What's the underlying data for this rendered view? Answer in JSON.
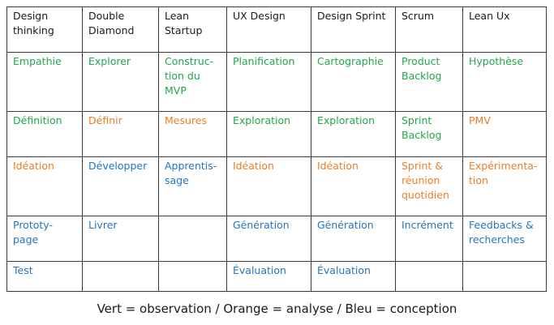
{
  "colors": {
    "green": "#21a84a",
    "orange": "#ee7d26",
    "blue": "#2276be",
    "border": "#3a3a3a",
    "text": "#1a1a1a"
  },
  "table": {
    "headers": [
      "Design\nthinking",
      "Double\nDiamond",
      "Lean\nStartup",
      "UX Design",
      "Design Sprint",
      "Scrum",
      "Lean Ux"
    ],
    "rows": [
      [
        {
          "text": "Empathie",
          "color": "green"
        },
        {
          "text": "Explorer",
          "color": "green"
        },
        {
          "text": "Construc-\ntion du\nMVP",
          "color": "green"
        },
        {
          "text": "Planification",
          "color": "green"
        },
        {
          "text": "Cartographie",
          "color": "green"
        },
        {
          "text": "Product\nBacklog",
          "color": "green"
        },
        {
          "text": "Hypothèse",
          "color": "green"
        }
      ],
      [
        {
          "text": "Définition",
          "color": "green"
        },
        {
          "text": "Définir",
          "color": "orange"
        },
        {
          "text": "Mesures",
          "color": "orange"
        },
        {
          "text": "Exploration",
          "color": "green"
        },
        {
          "text": "Exploration",
          "color": "green"
        },
        {
          "text": "Sprint\nBacklog",
          "color": "green"
        },
        {
          "text": "PMV",
          "color": "orange"
        }
      ],
      [
        {
          "text": "Idéation",
          "color": "orange"
        },
        {
          "text": "Développer",
          "color": "blue"
        },
        {
          "text": "Apprentis-\nsage",
          "color": "blue"
        },
        {
          "text": "Idéation",
          "color": "orange"
        },
        {
          "text": "Idéation",
          "color": "orange"
        },
        {
          "text": "Sprint &\nréunion\nquotidien",
          "color": "orange"
        },
        {
          "text": "Expérimenta-\ntion",
          "color": "orange"
        }
      ],
      [
        {
          "text": "Prototy-\npage",
          "color": "blue"
        },
        {
          "text": "Livrer",
          "color": "blue"
        },
        {
          "text": "",
          "color": "blue"
        },
        {
          "text": "Génération",
          "color": "blue"
        },
        {
          "text": "Génération",
          "color": "blue"
        },
        {
          "text": "Incrément",
          "color": "blue"
        },
        {
          "text": "Feedbacks &\nrecherches",
          "color": "blue"
        }
      ],
      [
        {
          "text": "Test",
          "color": "blue"
        },
        {
          "text": "",
          "color": "blue"
        },
        {
          "text": "",
          "color": "blue"
        },
        {
          "text": "Évaluation",
          "color": "blue"
        },
        {
          "text": "Évaluation",
          "color": "blue"
        },
        {
          "text": "",
          "color": "blue"
        },
        {
          "text": "",
          "color": "blue"
        }
      ]
    ]
  },
  "legend": "Vert = observation / Orange = analyse / Bleu = conception"
}
